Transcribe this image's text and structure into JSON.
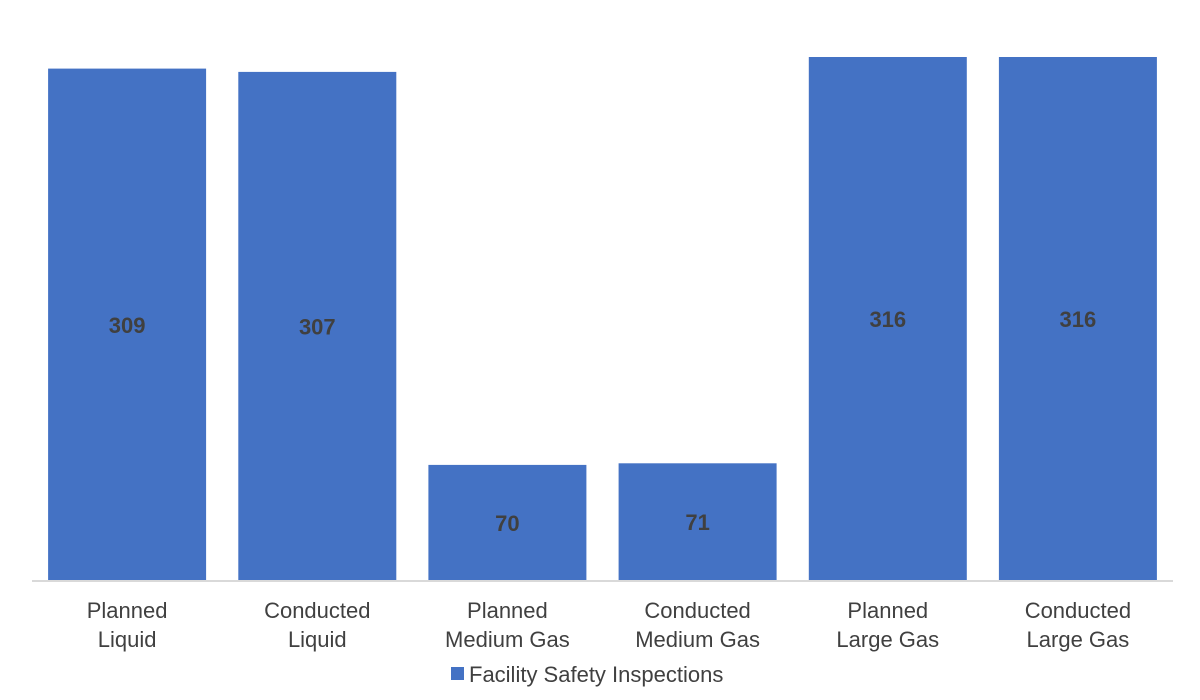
{
  "chart_data": {
    "type": "bar",
    "categories": [
      [
        "Planned",
        "Liquid"
      ],
      [
        "Conducted",
        "Liquid"
      ],
      [
        "Planned",
        "Medium Gas"
      ],
      [
        "Conducted",
        "Medium Gas"
      ],
      [
        "Planned",
        "Large Gas"
      ],
      [
        "Conducted",
        "Large Gas"
      ]
    ],
    "series": [
      {
        "name": "Facility Safety Inspections",
        "values": [
          309,
          307,
          70,
          71,
          316,
          316
        ]
      }
    ],
    "data_labels": [
      "309",
      "307",
      "70",
      "71",
      "316",
      "316"
    ],
    "title": "",
    "xlabel": "",
    "ylabel": "",
    "ylim": [
      0,
      316
    ],
    "grid": false,
    "legend_position": "bottom",
    "colors": {
      "bar": "#4472c4",
      "axis": "#d9d9d9",
      "text": "#404040"
    }
  }
}
